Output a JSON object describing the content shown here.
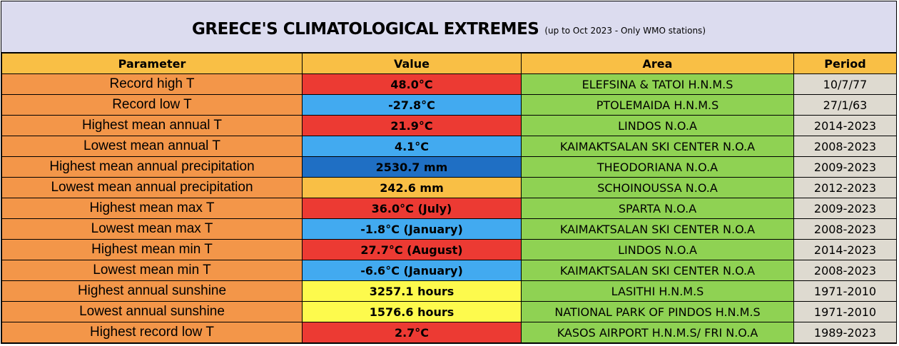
{
  "title": {
    "main": "GREECE'S CLIMATOLOGICAL EXTREMES",
    "note": "(up to Oct 2023 - Only WMO stations)"
  },
  "columns": [
    "Parameter",
    "Value",
    "Area",
    "Period"
  ],
  "colors": {
    "hot": "#ec3a33",
    "cold": "#42aaf0",
    "deep_blue": "#1f6fc4",
    "orange": "#f9bf45",
    "yellow": "#fdfa4d"
  },
  "rows": [
    {
      "parameter": "Record high T",
      "value": "48.0°C",
      "area": "ELEFSINA & TATOI H.N.M.S",
      "period": "10/7/77",
      "value_color": "#ec3a33"
    },
    {
      "parameter": "Record low T",
      "value": "-27.8°C",
      "area": "PTOLEMAIDA H.N.M.S",
      "period": "27/1/63",
      "value_color": "#42aaf0"
    },
    {
      "parameter": "Highest mean annual T",
      "value": "21.9°C",
      "area": "LINDOS N.O.A",
      "period": "2014-2023",
      "value_color": "#ec3a33"
    },
    {
      "parameter": "Lowest mean annual T",
      "value": "4.1°C",
      "area": "KAIMAKTSALAN SKI CENTER N.O.A",
      "period": "2008-2023",
      "value_color": "#42aaf0"
    },
    {
      "parameter": "Highest mean annual precipitation",
      "value": "2530.7 mm",
      "area": "THEODORIANA N.O.A",
      "period": "2009-2023",
      "value_color": "#1f6fc4"
    },
    {
      "parameter": "Lowest mean annual precipitation",
      "value": "242.6 mm",
      "area": "SCHOINOUSSA N.O.A",
      "period": "2012-2023",
      "value_color": "#f9bf45"
    },
    {
      "parameter": "Highest mean max T",
      "value": "36.0°C (July)",
      "area": "SPARTA N.O.A",
      "period": "2009-2023",
      "value_color": "#ec3a33"
    },
    {
      "parameter": "Lowest mean max T",
      "value": "-1.8°C (January)",
      "area": "KAIMAKTSALAN SKI CENTER N.O.A",
      "period": "2008-2023",
      "value_color": "#42aaf0"
    },
    {
      "parameter": "Highest mean min T",
      "value": "27.7°C (August)",
      "area": "LINDOS N.O.A",
      "period": "2014-2023",
      "value_color": "#ec3a33"
    },
    {
      "parameter": "Lowest mean min T",
      "value": "-6.6°C (January)",
      "area": "KAIMAKTSALAN SKI CENTER N.O.A",
      "period": "2008-2023",
      "value_color": "#42aaf0"
    },
    {
      "parameter": "Highest annual sunshine",
      "value": "3257.1 hours",
      "area": "LASITHI H.N.M.S",
      "period": "1971-2010",
      "value_color": "#fdfa4d"
    },
    {
      "parameter": "Lowest annual sunshine",
      "value": "1576.6 hours",
      "area": "NATIONAL PARK OF PINDOS H.N.M.S",
      "period": "1971-2010",
      "value_color": "#fdfa4d"
    },
    {
      "parameter": "Highest record low T",
      "value": "2.7°C",
      "area": "KASOS AIRPORT H.N.M.S/ FRI N.O.A",
      "period": "1989-2023",
      "value_color": "#ec3a33"
    }
  ]
}
